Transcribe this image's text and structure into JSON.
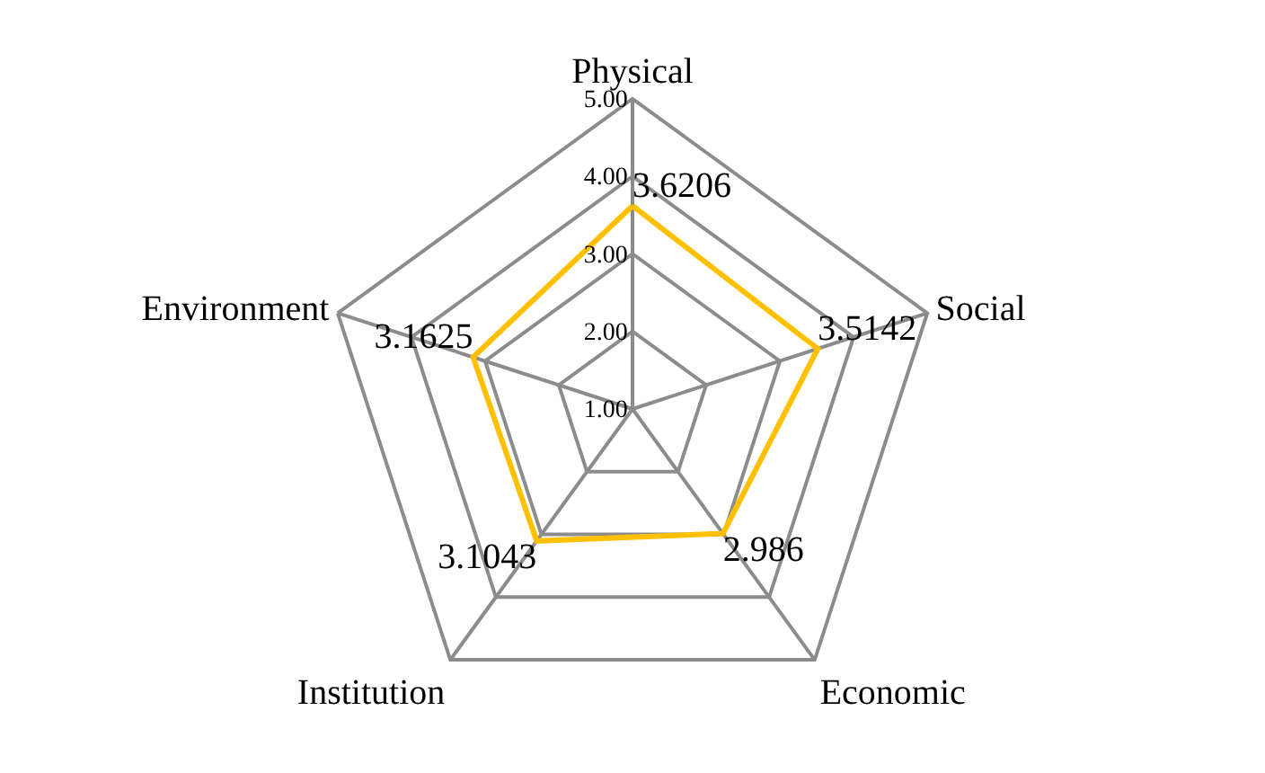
{
  "chart_data": {
    "type": "radar",
    "categories": [
      "Physical",
      "Social",
      "Economic",
      "Institution",
      "Environment"
    ],
    "series": [
      {
        "color": "#ffc000",
        "values": [
          3.6206,
          3.5142,
          2.986,
          3.1043,
          3.1625
        ]
      }
    ],
    "ylim": [
      1,
      5
    ],
    "yticks": [
      {
        "value": 1,
        "label": "1.00"
      },
      {
        "value": 2,
        "label": "2.00"
      },
      {
        "value": 3,
        "label": "3.00"
      },
      {
        "value": 4,
        "label": "4.00"
      },
      {
        "value": 5,
        "label": "5.00"
      }
    ],
    "grid": true,
    "data_labels": true,
    "marker": "none"
  }
}
